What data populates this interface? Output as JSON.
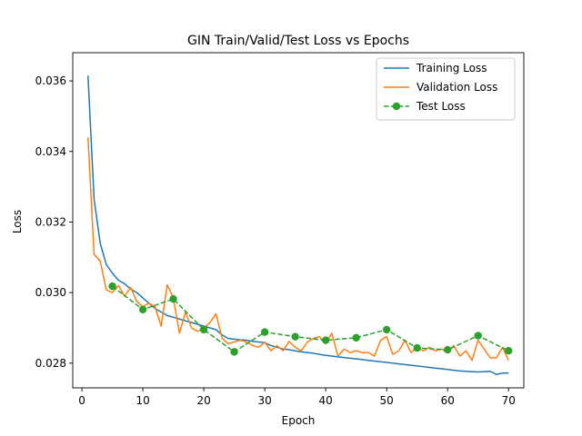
{
  "chart_data": {
    "type": "line",
    "title": "GIN Train/Valid/Test Loss vs Epochs",
    "xlabel": "Epoch",
    "ylabel": "Loss",
    "xlim": [
      -1.5,
      72.5
    ],
    "ylim": [
      0.0273,
      0.0368
    ],
    "xticks": [
      0,
      10,
      20,
      30,
      40,
      50,
      60,
      70
    ],
    "yticks": [
      0.028,
      0.03,
      0.032,
      0.034,
      0.036
    ],
    "ytick_labels": [
      "0.028",
      "0.030",
      "0.032",
      "0.034",
      "0.036"
    ],
    "grid": false,
    "legend_position": "top-right",
    "series": [
      {
        "name": "Training Loss",
        "color": "#1f77b4",
        "style": "solid",
        "marker": "none",
        "x": [
          1,
          2,
          3,
          4,
          5,
          6,
          7,
          8,
          9,
          10,
          11,
          12,
          13,
          14,
          15,
          16,
          17,
          18,
          19,
          20,
          21,
          22,
          23,
          24,
          25,
          26,
          27,
          28,
          29,
          30,
          31,
          32,
          33,
          34,
          35,
          36,
          37,
          38,
          39,
          40,
          41,
          42,
          43,
          44,
          45,
          46,
          47,
          48,
          49,
          50,
          51,
          52,
          53,
          54,
          55,
          56,
          57,
          58,
          59,
          60,
          61,
          62,
          63,
          64,
          65,
          66,
          67,
          68,
          69,
          70
        ],
        "y": [
          0.03615,
          0.03265,
          0.0314,
          0.0308,
          0.03055,
          0.03035,
          0.03025,
          0.0301,
          0.03,
          0.02985,
          0.0297,
          0.02955,
          0.02945,
          0.02935,
          0.0293,
          0.02925,
          0.0292,
          0.02915,
          0.0291,
          0.02905,
          0.029,
          0.02895,
          0.0288,
          0.0287,
          0.02868,
          0.02866,
          0.02865,
          0.02862,
          0.0286,
          0.02858,
          0.0285,
          0.02845,
          0.0284,
          0.02838,
          0.02835,
          0.02832,
          0.0283,
          0.02828,
          0.02825,
          0.02822,
          0.0282,
          0.02818,
          0.02816,
          0.02814,
          0.02812,
          0.0281,
          0.02808,
          0.02806,
          0.02804,
          0.02802,
          0.028,
          0.02798,
          0.02796,
          0.02794,
          0.02792,
          0.0279,
          0.02788,
          0.02786,
          0.02784,
          0.02782,
          0.0278,
          0.02778,
          0.02777,
          0.02776,
          0.02775,
          0.02776,
          0.02777,
          0.02768,
          0.02772,
          0.02772
        ]
      },
      {
        "name": "Validation Loss",
        "color": "#ff7f0e",
        "style": "solid",
        "marker": "none",
        "x": [
          1,
          2,
          3,
          4,
          5,
          6,
          7,
          8,
          9,
          10,
          11,
          12,
          13,
          14,
          15,
          16,
          17,
          18,
          19,
          20,
          21,
          22,
          23,
          24,
          25,
          26,
          27,
          28,
          29,
          30,
          31,
          32,
          33,
          34,
          35,
          36,
          37,
          38,
          39,
          40,
          41,
          42,
          43,
          44,
          45,
          46,
          47,
          48,
          49,
          50,
          51,
          52,
          53,
          54,
          55,
          56,
          57,
          58,
          59,
          60,
          61,
          62,
          63,
          64,
          65,
          66,
          67,
          68,
          69,
          70
        ],
        "y": [
          0.0344,
          0.03108,
          0.0309,
          0.03008,
          0.03,
          0.0302,
          0.0299,
          0.03015,
          0.02975,
          0.0296,
          0.0297,
          0.0296,
          0.02905,
          0.03022,
          0.02985,
          0.02885,
          0.02945,
          0.029,
          0.0289,
          0.029,
          0.02915,
          0.0294,
          0.0287,
          0.02855,
          0.0286,
          0.02865,
          0.0286,
          0.0285,
          0.02845,
          0.0286,
          0.02835,
          0.0285,
          0.02835,
          0.02862,
          0.02845,
          0.02835,
          0.0286,
          0.0287,
          0.02875,
          0.02855,
          0.02885,
          0.0282,
          0.0284,
          0.0283,
          0.02835,
          0.0283,
          0.0283,
          0.0282,
          0.02865,
          0.02875,
          0.02825,
          0.02835,
          0.02865,
          0.0283,
          0.02845,
          0.02835,
          0.02845,
          0.02835,
          0.0284,
          0.0283,
          0.0285,
          0.0282,
          0.02835,
          0.02808,
          0.02865,
          0.0284,
          0.02815,
          0.02815,
          0.02845,
          0.02808
        ]
      },
      {
        "name": "Test Loss",
        "color": "#2ca02c",
        "style": "dashed",
        "marker": "circle",
        "x": [
          5,
          10,
          15,
          20,
          25,
          30,
          35,
          40,
          45,
          50,
          55,
          60,
          65,
          70
        ],
        "y": [
          0.03018,
          0.02952,
          0.02982,
          0.02895,
          0.02832,
          0.02888,
          0.02875,
          0.02865,
          0.02872,
          0.02895,
          0.02843,
          0.02838,
          0.02878,
          0.02835
        ]
      }
    ]
  }
}
